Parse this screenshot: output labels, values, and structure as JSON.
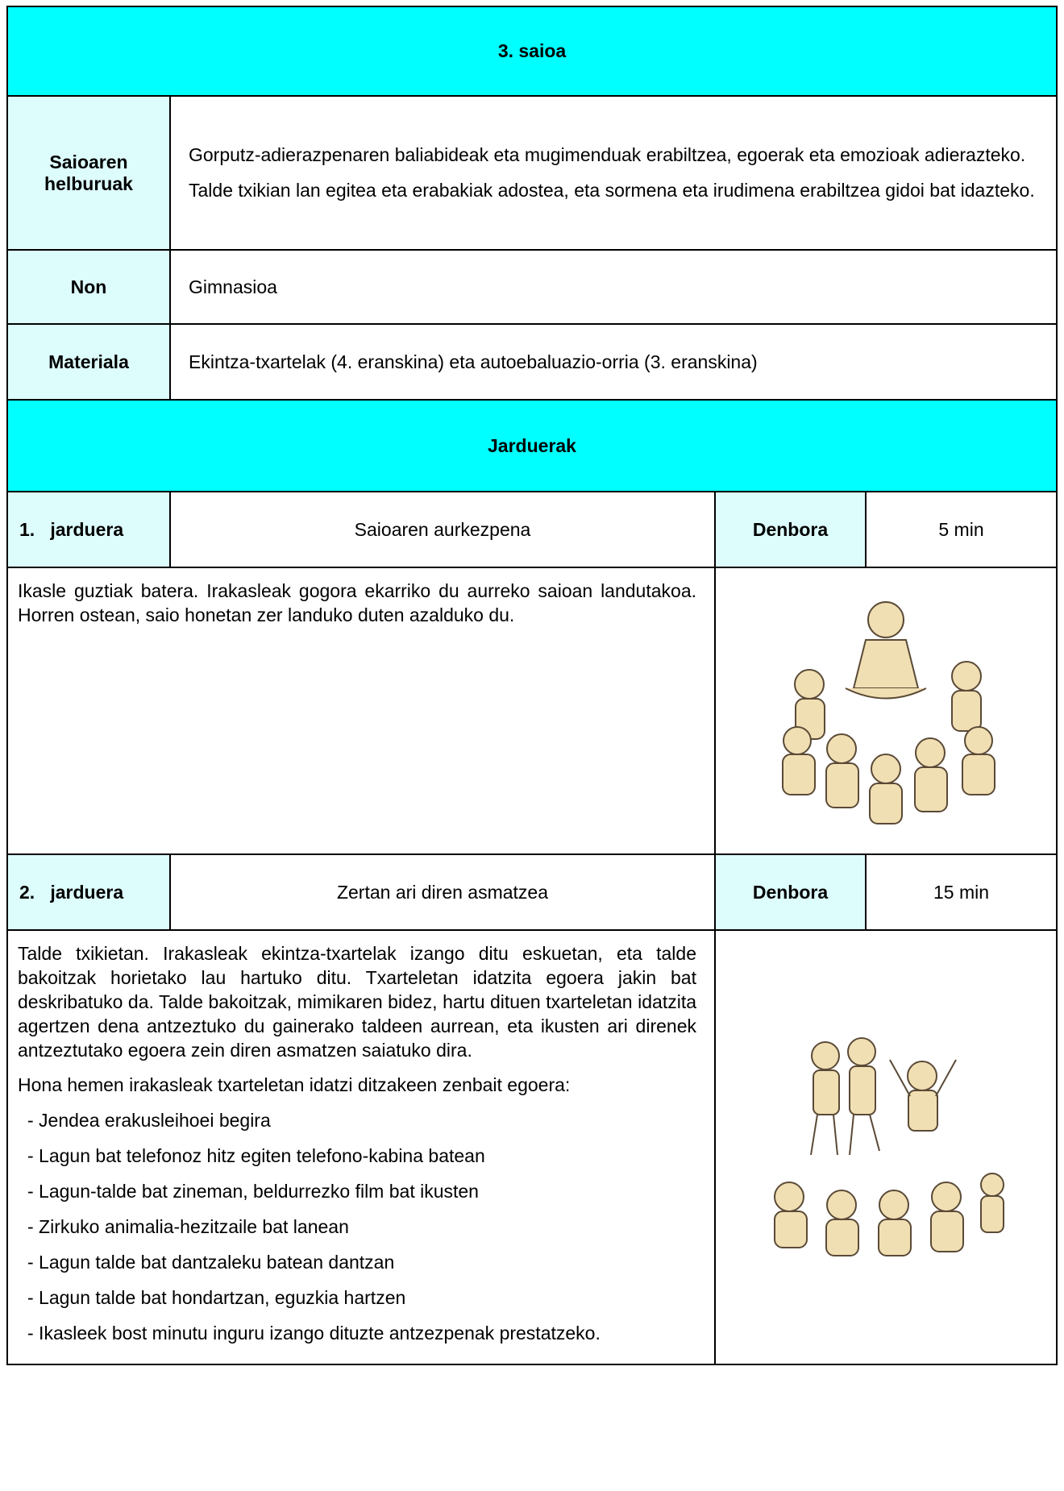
{
  "header": {
    "title": "3. saioa"
  },
  "info": [
    {
      "label": "Saioaren helburuak",
      "paragraphs": [
        "Gorputz-adierazpenaren baliabideak eta mugimenduak erabiltzea, egoerak eta emozioak adierazteko.",
        "Talde txikian lan egitea eta erabakiak adostea, eta sormena eta irudimena erabiltzea gidoi bat idazteko."
      ]
    },
    {
      "label": "Non",
      "paragraphs": [
        "Gimnasioa"
      ]
    },
    {
      "label": "Materiala",
      "paragraphs": [
        "Ekintza-txartelak (4. eranskina) eta autoebaluazio-orria (3. eranskina)"
      ]
    }
  ],
  "section_title": "Jarduerak",
  "activities": [
    {
      "number": "1.",
      "label": "jarduera",
      "name": "Saioaren aurkezpena",
      "time_label": "Denbora",
      "time": "5 min",
      "paragraphs": [
        "Ikasle guztiak batera. Irakasleak gogora ekarriko du aurreko saioan landutakoa. Horren ostean, saio honetan zer landuko duten azalduko du."
      ],
      "list": []
    },
    {
      "number": "2.",
      "label": "jarduera",
      "name": "Zertan ari diren asmatzea",
      "time_label": "Denbora",
      "time": "15 min",
      "paragraphs": [
        "Talde txikietan. Irakasleak ekintza-txartelak izango ditu eskuetan, eta talde bakoitzak horietako lau hartuko ditu. Txarteletan idatzita egoera jakin bat deskribatuko da. Talde bakoitzak, mimikaren bidez, hartu dituen txarteletan idatzita agertzen dena antzeztuko du gainerako taldeen aurrean, eta ikusten ari direnek antzeztutako egoera zein diren asmatzen saiatuko dira.",
        "Hona hemen irakasleak txarteletan idatzi ditzakeen zenbait egoera:"
      ],
      "list": [
        "- Jendea erakusleihoei begira",
        "- Lagun bat telefonoz hitz egiten telefono-kabina batean",
        "- Lagun-talde bat zineman, beldurrezko film bat ikusten",
        "- Zirkuko animalia-hezitzaile bat lanean",
        "- Lagun talde bat dantzaleku batean dantzan",
        "- Lagun talde bat hondartzan, eguzkia hartzen",
        "- Ikasleek bost minutu inguru izango dituzte antzezpenak prestatzeko."
      ]
    }
  ]
}
